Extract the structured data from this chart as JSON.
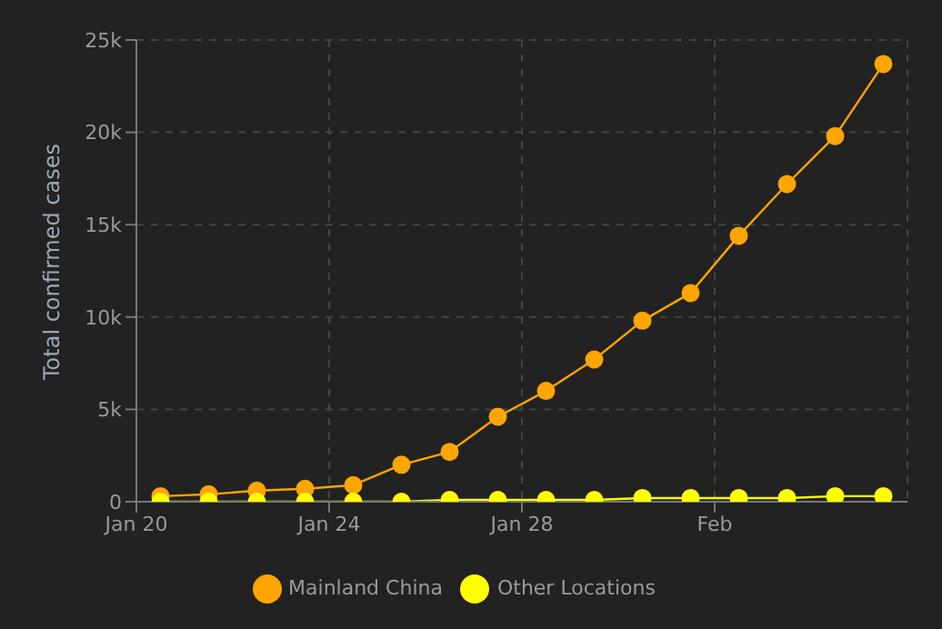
{
  "chart_data": {
    "type": "line",
    "ylabel": "Total confirmed cases",
    "x": [
      "--01-20T12:00",
      "--01-21T12:00",
      "--01-22T12:00",
      "--01-23T12:00",
      "--01-24T12:00",
      "--01-25T12:00",
      "--01-26T12:00",
      "--01-27T12:00",
      "--01-28T12:00",
      "--01-29T12:00",
      "--01-30T12:00",
      "--01-31T12:00",
      "--02-01T12:00",
      "--02-02T12:00",
      "--02-03T12:00",
      "--02-04T12:00"
    ],
    "series": [
      {
        "name": "Mainland China",
        "color": "#ffa500",
        "values": [
          300,
          400,
          600,
          700,
          900,
          2000,
          2700,
          4600,
          6000,
          7700,
          9800,
          11300,
          14400,
          17200,
          19800,
          23700
        ]
      },
      {
        "name": "Other Locations",
        "color": "#ffff00",
        "values": [
          0,
          0,
          0,
          0,
          0,
          0,
          100,
          100,
          100,
          100,
          200,
          200,
          200,
          200,
          300,
          300
        ]
      }
    ],
    "xlim": [
      "--01-20",
      "--02-05"
    ],
    "xticks": [
      {
        "value": "--01-20",
        "label": "Jan 20"
      },
      {
        "value": "--01-24",
        "label": "Jan 24"
      },
      {
        "value": "--01-28",
        "label": "Jan 28"
      },
      {
        "value": "--02-01",
        "label": "Feb"
      }
    ],
    "ylim": [
      0,
      25000
    ],
    "yticks": [
      {
        "value": 0,
        "label": "0"
      },
      {
        "value": 5000,
        "label": "5k"
      },
      {
        "value": 10000,
        "label": "10k"
      },
      {
        "value": 15000,
        "label": "15k"
      },
      {
        "value": 20000,
        "label": "20k"
      },
      {
        "value": 25000,
        "label": "25k"
      }
    ],
    "grid": true,
    "legend": "bottom",
    "marker": "circle",
    "line_style": "solid"
  }
}
